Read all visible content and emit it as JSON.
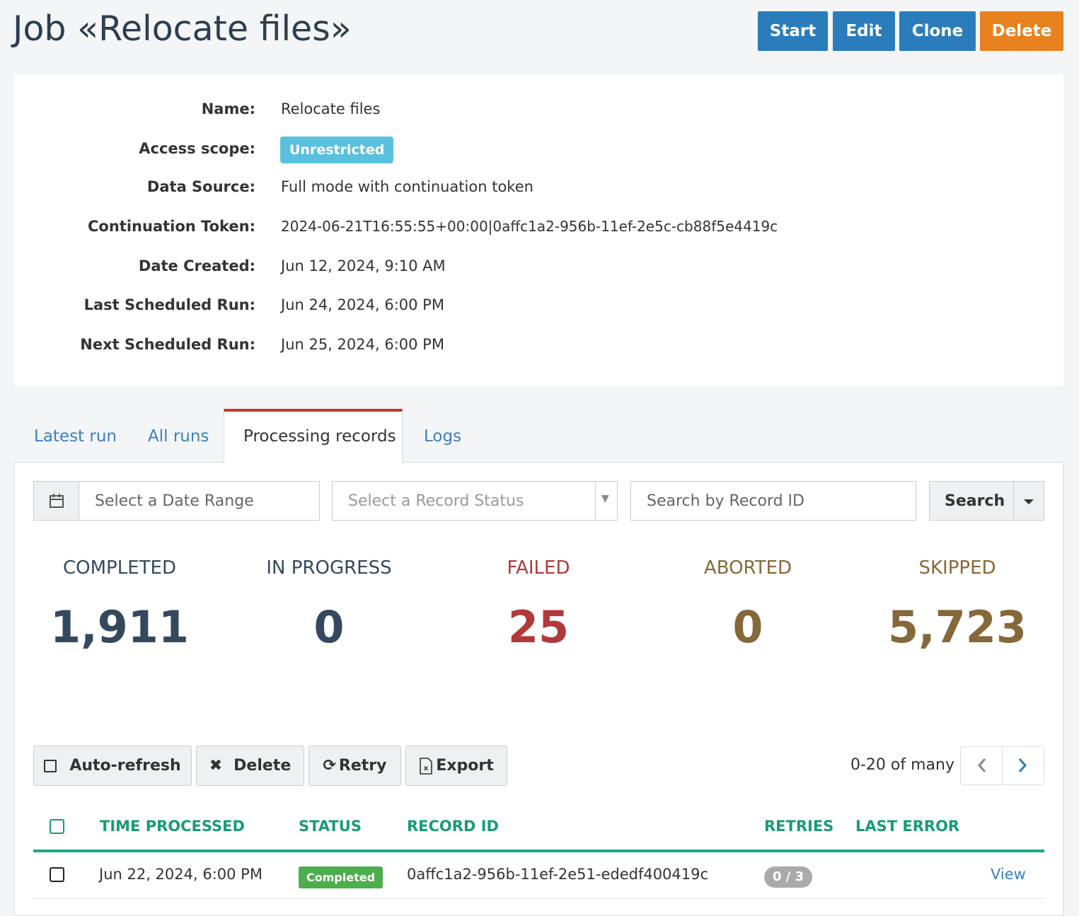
{
  "header": {
    "title": "Job «Relocate files»",
    "buttons": [
      "Start",
      "Edit",
      "Clone",
      "Delete"
    ]
  },
  "details": [
    {
      "label": "Name:",
      "value": "Relocate files"
    },
    {
      "label": "Access scope:",
      "value": "Unrestricted"
    },
    {
      "label": "Data Source:",
      "value": "Full mode with continuation token"
    },
    {
      "label": "Continuation Token:",
      "value": "2024-06-21T16:55:55+00:00|0affc1a2-956b-11ef-2e5c-cb88f5e4419c"
    },
    {
      "label": "Date Created:",
      "value": "Jun 12, 2024, 9:10 AM"
    },
    {
      "label": "Last Scheduled Run:",
      "value": "Jun 24, 2024, 6:00 PM"
    },
    {
      "label": "Next Scheduled Run:",
      "value": "Jun 25, 2024, 6:00 PM"
    }
  ],
  "tabs": [
    "Latest run",
    "All runs",
    "Processing records",
    "Logs"
  ],
  "filters": {
    "date_placeholder": "Select a Date Range",
    "status_placeholder": "Select a Record Status",
    "search_placeholder": "Search by Record ID",
    "search_button": "Search"
  },
  "stats": [
    {
      "label": "COMPLETED",
      "value": "1,911"
    },
    {
      "label": "IN PROGRESS",
      "value": "0"
    },
    {
      "label": "FAILED",
      "value": "25"
    },
    {
      "label": "ABORTED",
      "value": "0"
    },
    {
      "label": "SKIPPED",
      "value": "5,723"
    }
  ],
  "toolbar": {
    "buttons": [
      "Auto-refresh",
      "Delete",
      "Retry",
      "Export"
    ],
    "pagination": "0-20 of many"
  },
  "table": {
    "columns": [
      "TIME PROCESSED",
      "STATUS",
      "RECORD ID",
      "RETRIES",
      "LAST ERROR"
    ],
    "rows": [
      {
        "time": "Jun 22, 2024, 6:00 PM",
        "status": "Completed",
        "record_id": "0affc1a2-956b-11ef-2e51-ededf400419c",
        "retries": "0 / 3",
        "action": "View"
      }
    ]
  }
}
